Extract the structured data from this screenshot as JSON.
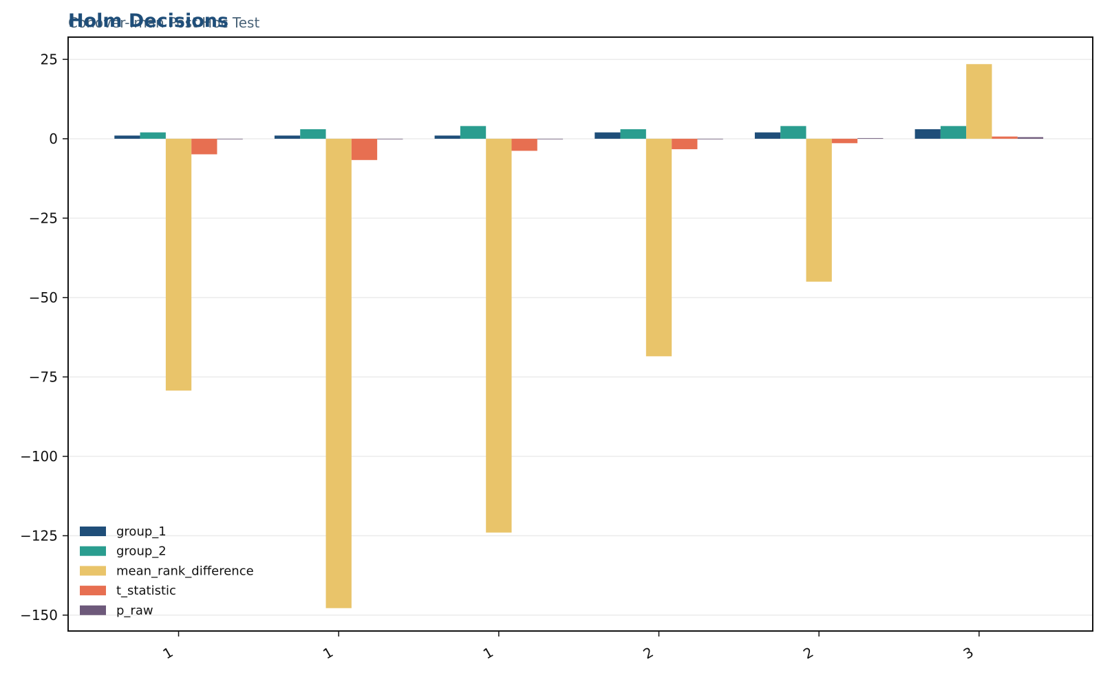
{
  "chart_data": {
    "type": "bar",
    "title": "Holm Decisions",
    "subtitle": "Conover-Iman Post Hoc Test",
    "xlabel": "",
    "ylabel": "",
    "categories": [
      "1",
      "1",
      "1",
      "2",
      "2",
      "3"
    ],
    "ylim": [
      -155,
      32
    ],
    "yticks": [
      25,
      0,
      -25,
      -50,
      -75,
      -100,
      -125,
      -150
    ],
    "ytick_labels": [
      "25",
      "0",
      "−25",
      "−50",
      "−75",
      "−100",
      "−125",
      "−150"
    ],
    "grid": true,
    "legend_position": "lower-left",
    "series": [
      {
        "name": "group_1",
        "color": "#1f4e79",
        "values": [
          1,
          1,
          1,
          2,
          2,
          3
        ]
      },
      {
        "name": "group_2",
        "color": "#2a9d8f",
        "values": [
          2,
          3,
          4,
          3,
          4,
          4
        ]
      },
      {
        "name": "mean_rank_difference",
        "color": "#e9c46a",
        "values": [
          -79.3,
          -147.8,
          -124.0,
          -68.5,
          -45.0,
          23.5
        ]
      },
      {
        "name": "t_statistic",
        "color": "#e76f51",
        "values": [
          -4.9,
          -6.7,
          -3.8,
          -3.3,
          -1.4,
          0.7
        ]
      },
      {
        "name": "p_raw",
        "color": "#6d597a",
        "values": [
          0.0,
          0.0,
          0.0,
          0.0,
          0.2,
          0.5
        ]
      }
    ]
  },
  "colors": {
    "title": "#1f4e79",
    "subtitle": "#4a6378",
    "grid": "#ebebeb",
    "axis": "#111111"
  }
}
